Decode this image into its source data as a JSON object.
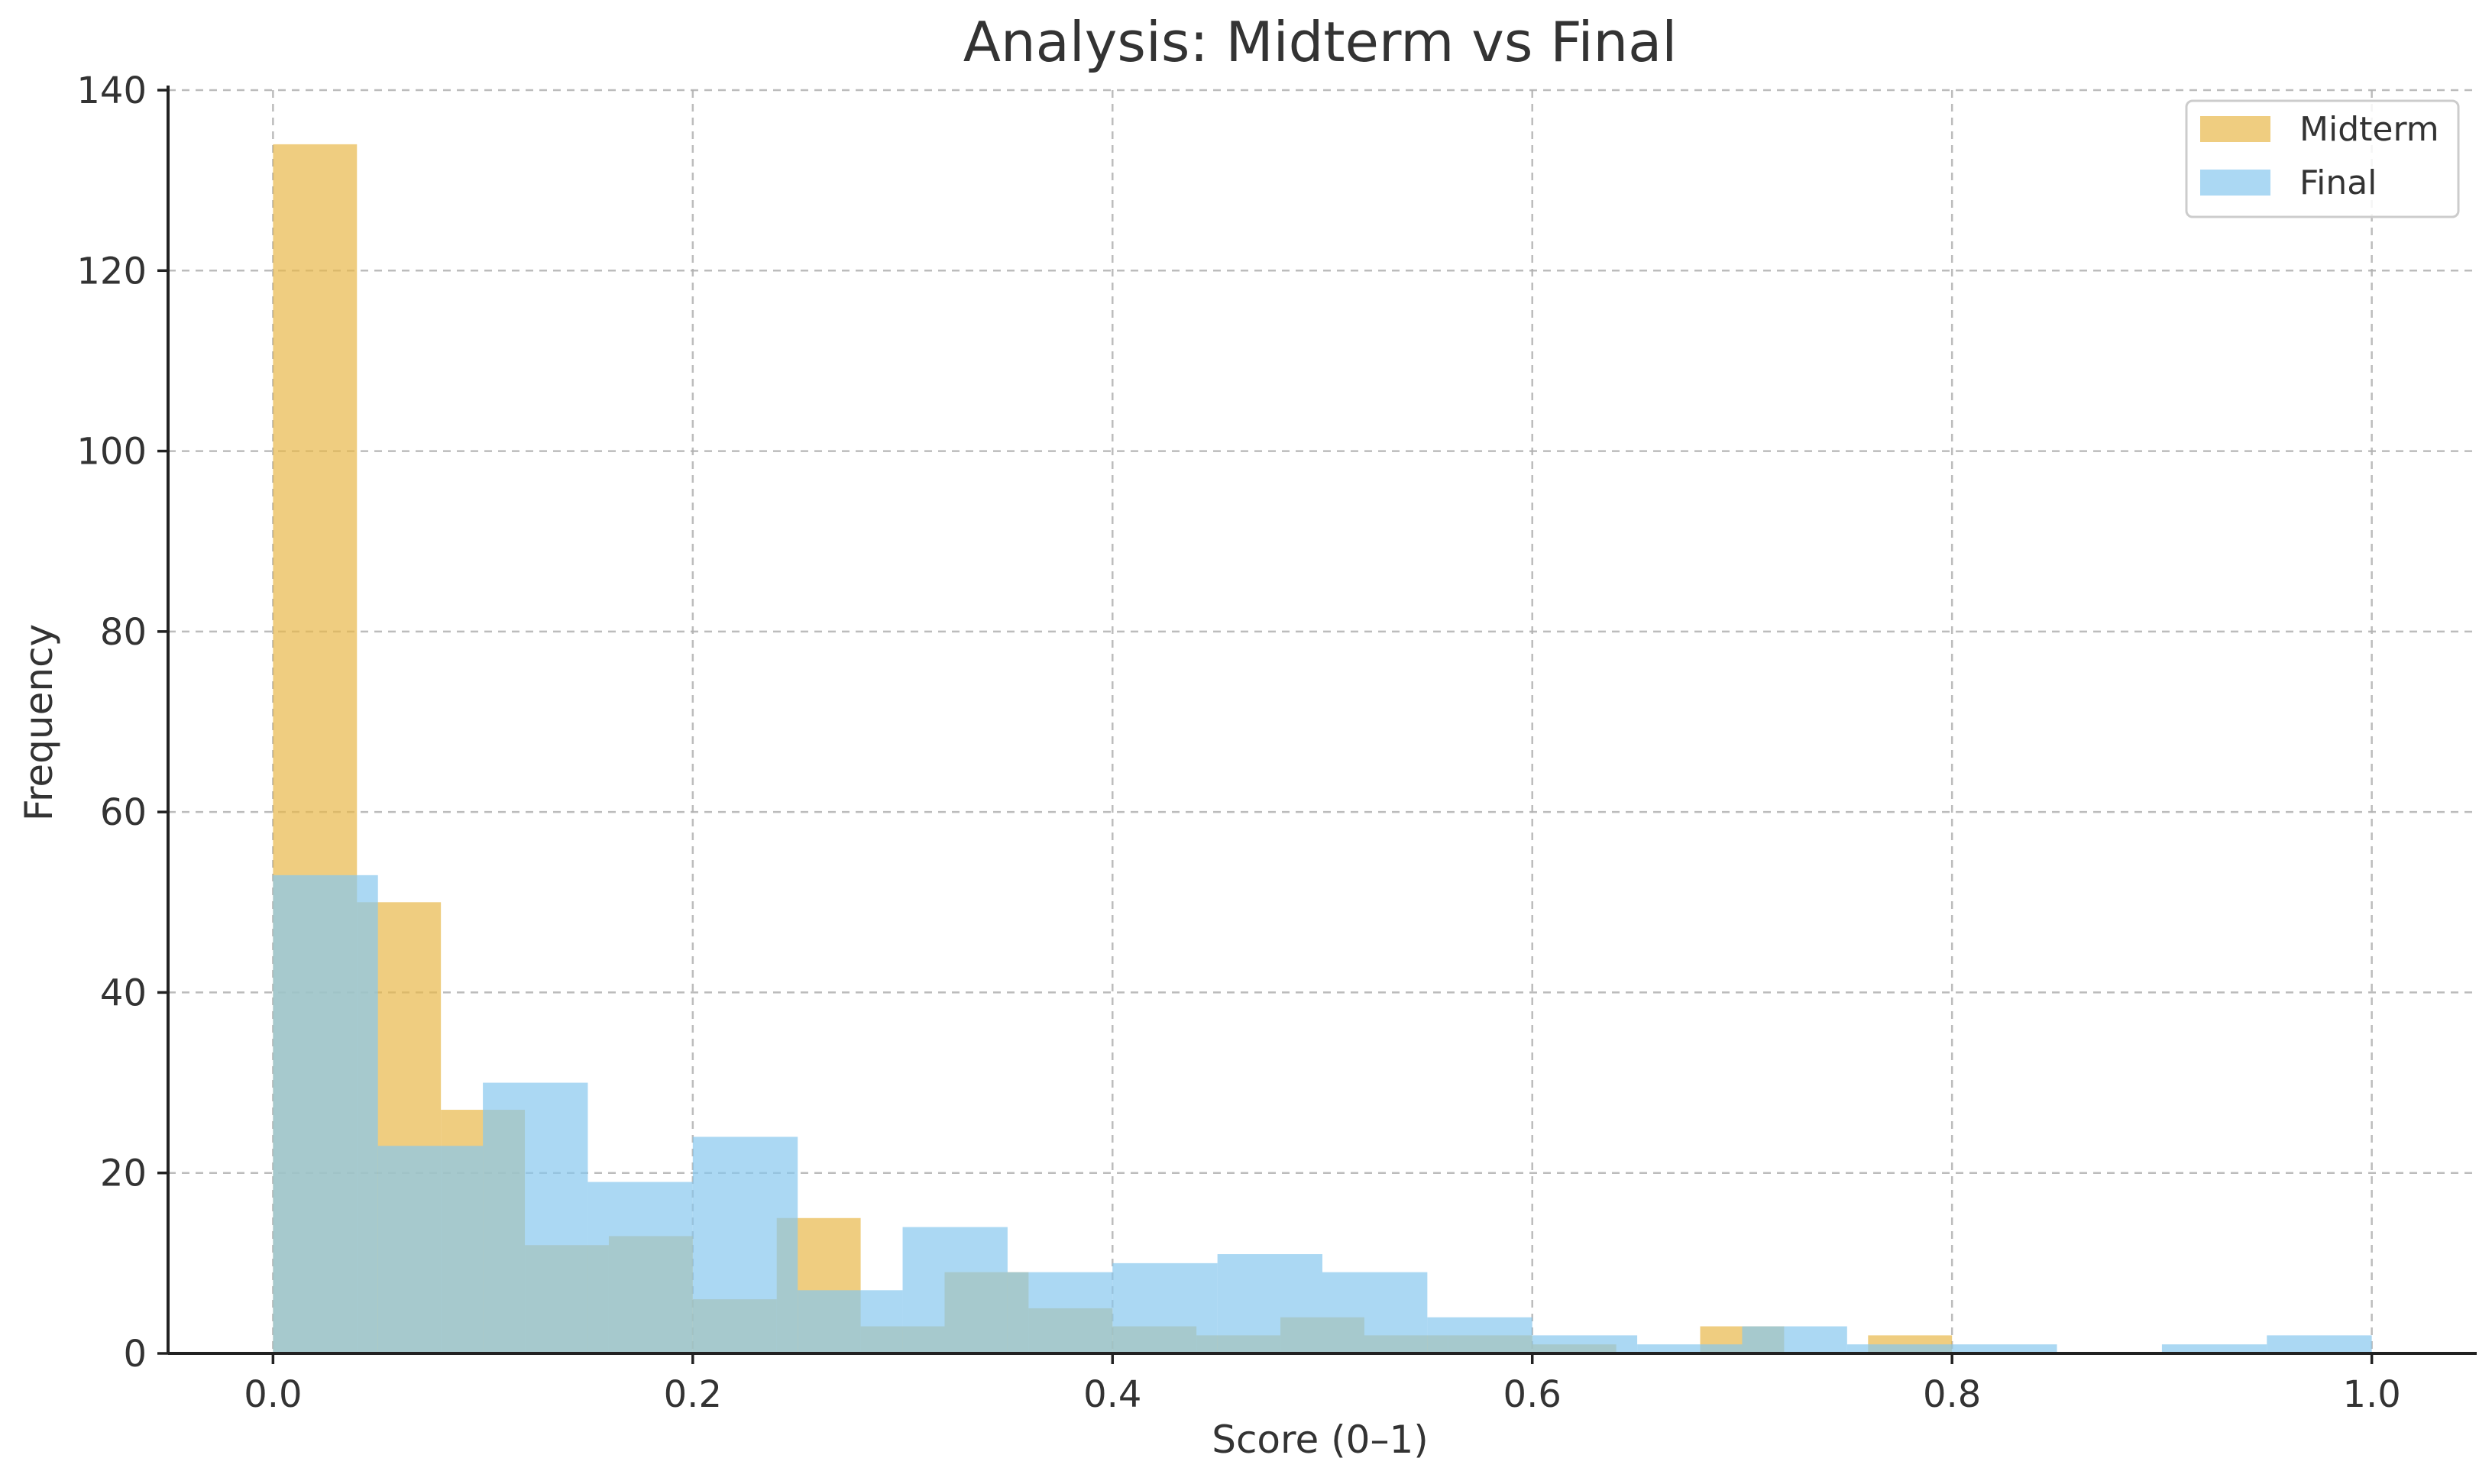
{
  "chart_data": {
    "type": "bar",
    "subtype": "overlapping histogram",
    "title": "Analysis: Midterm vs Final",
    "xlabel": "Score (0–1)",
    "ylabel": "Frequency",
    "xlim": [
      -0.05,
      1.05
    ],
    "ylim": [
      0,
      140
    ],
    "xticks": [
      "0.0",
      "0.2",
      "0.4",
      "0.6",
      "0.8",
      "1.0"
    ],
    "yticks": [
      "0",
      "20",
      "40",
      "60",
      "80",
      "100",
      "120",
      "140"
    ],
    "grid": true,
    "legend_position": "top-right",
    "series": [
      {
        "name": "Midterm",
        "color": "#E8B84A",
        "opacity": 0.7,
        "bin_width": 0.04,
        "bins": [
          {
            "x0": 0.0,
            "value": 134
          },
          {
            "x0": 0.04,
            "value": 50
          },
          {
            "x0": 0.08,
            "value": 27
          },
          {
            "x0": 0.12,
            "value": 12
          },
          {
            "x0": 0.16,
            "value": 13
          },
          {
            "x0": 0.2,
            "value": 6
          },
          {
            "x0": 0.24,
            "value": 15
          },
          {
            "x0": 0.28,
            "value": 3
          },
          {
            "x0": 0.32,
            "value": 9
          },
          {
            "x0": 0.36,
            "value": 5
          },
          {
            "x0": 0.4,
            "value": 3
          },
          {
            "x0": 0.44,
            "value": 2
          },
          {
            "x0": 0.48,
            "value": 4
          },
          {
            "x0": 0.52,
            "value": 2
          },
          {
            "x0": 0.56,
            "value": 2
          },
          {
            "x0": 0.6,
            "value": 1
          },
          {
            "x0": 0.64,
            "value": 0
          },
          {
            "x0": 0.68,
            "value": 3
          },
          {
            "x0": 0.72,
            "value": 0
          },
          {
            "x0": 0.76,
            "value": 2
          }
        ]
      },
      {
        "name": "Final",
        "color": "#87C8EE",
        "opacity": 0.7,
        "bin_width": 0.05,
        "bins": [
          {
            "x0": 0.0,
            "value": 53
          },
          {
            "x0": 0.05,
            "value": 23
          },
          {
            "x0": 0.1,
            "value": 30
          },
          {
            "x0": 0.15,
            "value": 19
          },
          {
            "x0": 0.2,
            "value": 24
          },
          {
            "x0": 0.25,
            "value": 7
          },
          {
            "x0": 0.3,
            "value": 14
          },
          {
            "x0": 0.35,
            "value": 9
          },
          {
            "x0": 0.4,
            "value": 10
          },
          {
            "x0": 0.45,
            "value": 11
          },
          {
            "x0": 0.5,
            "value": 9
          },
          {
            "x0": 0.55,
            "value": 4
          },
          {
            "x0": 0.6,
            "value": 2
          },
          {
            "x0": 0.65,
            "value": 1
          },
          {
            "x0": 0.7,
            "value": 3
          },
          {
            "x0": 0.75,
            "value": 1
          },
          {
            "x0": 0.8,
            "value": 1
          },
          {
            "x0": 0.85,
            "value": 0
          },
          {
            "x0": 0.9,
            "value": 1
          },
          {
            "x0": 0.95,
            "value": 2
          }
        ]
      }
    ]
  }
}
